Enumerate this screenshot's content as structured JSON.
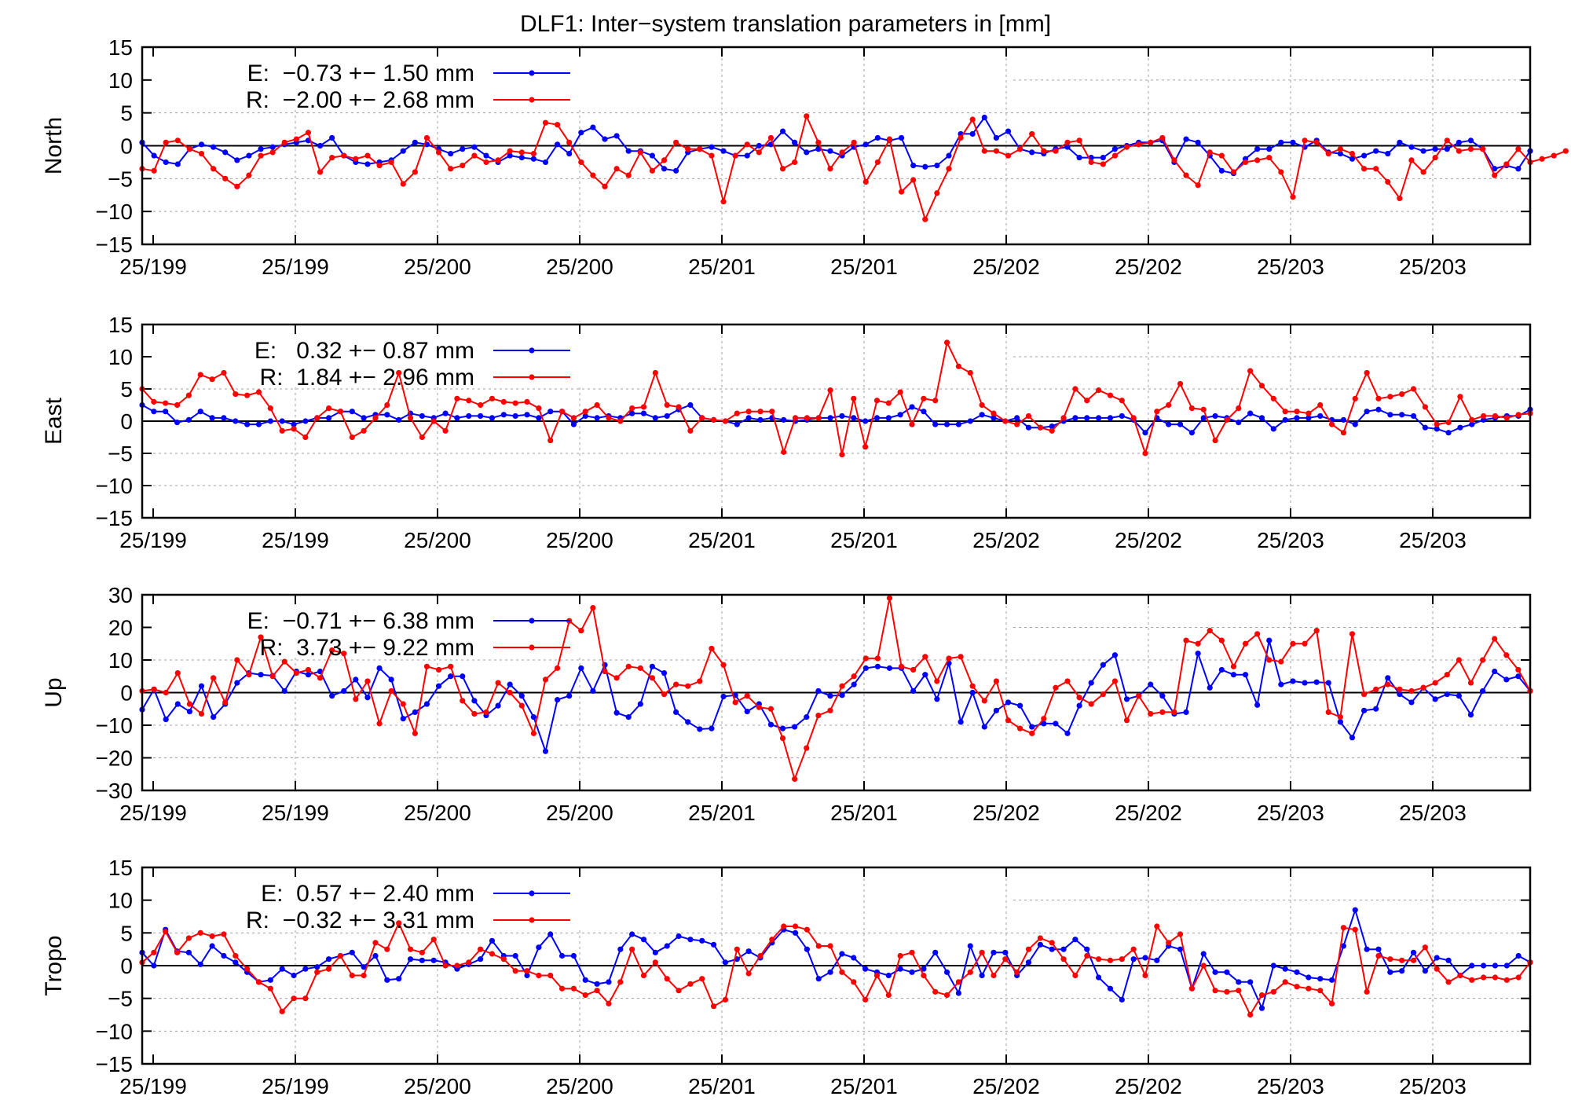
{
  "title": "DLF1: Inter−system translation parameters in [mm]",
  "colors": {
    "E": "#0000ff",
    "R": "#ff0000",
    "axis": "#000000",
    "grid": "#a0a0a0"
  },
  "chart_data": [
    {
      "type": "line",
      "ylabel": "North",
      "ylim": [
        -15,
        15
      ],
      "yticks": [
        15,
        10,
        5,
        0,
        -5,
        -10,
        -15
      ],
      "yticklabels": [
        "15",
        "10",
        "5",
        "0",
        "−5",
        "−10",
        "−15"
      ],
      "xticklabels": [
        "25/199",
        "25/199",
        "25/200",
        "25/200",
        "25/201",
        "25/201",
        "25/202",
        "25/202",
        "25/203",
        "25/203"
      ],
      "legend": "top-left",
      "series": [
        {
          "name": "E:  −0.73 +− 1.50 mm",
          "color": "#0000ff",
          "values": [
            0.5,
            -1.5,
            -2.5,
            -2.8,
            -0.5,
            0.2,
            -0.2,
            -1,
            -2.2,
            -1.5,
            -0.5,
            -0.2,
            0.2,
            0.5,
            0.8,
            0,
            1.2,
            -1.5,
            -2.5,
            -2.8,
            -2.5,
            -2.2,
            -0.8,
            0.5,
            0.2,
            -0.5,
            -1.2,
            -0.5,
            -0.2,
            -1.5,
            -2.5,
            -1.5,
            -1.8,
            -2,
            -2.5,
            0.2,
            -1.2,
            2,
            2.8,
            1,
            1.5,
            -0.8,
            -0.8,
            -1.5,
            -3.5,
            -3.8,
            -1,
            -0.5,
            -0.2,
            -0.8,
            -1.5,
            -1.5,
            0,
            0.2,
            2.2,
            0.5,
            -1,
            -0.5,
            -0.8,
            -1.5,
            -0.2,
            0.2,
            1.2,
            0.8,
            1.2,
            -3,
            -3.2,
            -3,
            -1.5,
            1.8,
            1.8,
            4.3,
            1.2,
            2.2,
            -0.5,
            -1,
            -1.2,
            -0.5,
            -0.2,
            -1.8,
            -1.8,
            -1.8,
            -0.5,
            0,
            0.5,
            0.5,
            0.8,
            -2.5,
            1,
            0.5,
            -1.5,
            -3.8,
            -4.2,
            -2,
            -0.5,
            -0.5,
            0.5,
            0.5,
            -0.2,
            0.8,
            -1,
            -1.2,
            -2,
            -1.5,
            -0.8,
            -1.2,
            0.5,
            -0.2,
            -0.8,
            -0.5,
            -0.5,
            0.5,
            0.8,
            -0.5,
            -3.5,
            -3,
            -3.5,
            -0.8
          ]
        },
        {
          "name": "R:  −2.00 +− 2.68 mm",
          "color": "#ff0000",
          "values": [
            -3.5,
            -3.8,
            0.5,
            0.8,
            -0.5,
            -1.2,
            -3.5,
            -5,
            -6.2,
            -4.5,
            -1.5,
            -1,
            0.5,
            1,
            2,
            -4,
            -1.8,
            -1.5,
            -2,
            -1.5,
            -3,
            -2.5,
            -5.8,
            -4,
            1.2,
            -1,
            -3.5,
            -3,
            -1.5,
            -2.5,
            -2.2,
            -0.8,
            -1,
            -1.2,
            3.5,
            3.2,
            0.5,
            -2.5,
            -4.5,
            -6.2,
            -3.5,
            -4.5,
            -1,
            -3.8,
            -2.2,
            0.5,
            -0.5,
            -0.5,
            -1.5,
            -8.5,
            -1.5,
            0.2,
            -1,
            1.2,
            -3.5,
            -2.5,
            4.5,
            0.5,
            -3.5,
            -1,
            0.5,
            -5.5,
            -2.5,
            1,
            -7,
            -5.2,
            -11.2,
            -7.2,
            -3.5,
            1.2,
            4,
            -0.8,
            -0.8,
            -1.5,
            -0.5,
            1.8,
            -0.8,
            -0.8,
            0.5,
            0.8,
            -2.5,
            -2.8,
            -1.5,
            -0.2,
            0.2,
            0.5,
            1.2,
            -2.2,
            -4.5,
            -6,
            -1,
            -1.5,
            -4,
            -2.5,
            -2.2,
            -1.8,
            -4,
            -7.8,
            0.8,
            0.5,
            -1.2,
            -0.5,
            -1.2,
            -3.5,
            -3.5,
            -5.5,
            -8,
            -2.2,
            -4,
            -1.8,
            0.8,
            -0.8,
            -0.5,
            -0.5,
            -4.5,
            -2.8,
            -0.5,
            -2.5,
            -2,
            -1.5,
            -0.8
          ]
        }
      ]
    },
    {
      "type": "line",
      "ylabel": "East",
      "ylim": [
        -15,
        15
      ],
      "yticks": [
        15,
        10,
        5,
        0,
        -5,
        -10,
        -15
      ],
      "yticklabels": [
        "15",
        "10",
        "5",
        "0",
        "−5",
        "−10",
        "−15"
      ],
      "xticklabels": [
        "25/199",
        "25/199",
        "25/200",
        "25/200",
        "25/201",
        "25/201",
        "25/202",
        "25/202",
        "25/203",
        "25/203"
      ],
      "legend": "top-left",
      "series": [
        {
          "name": "E:   0.32 +− 0.87 mm",
          "color": "#0000ff",
          "values": [
            2.5,
            1.5,
            1.5,
            -0.2,
            0.2,
            1.5,
            0.5,
            0.5,
            0,
            -0.5,
            -0.5,
            0,
            0,
            -0.5,
            0,
            0.5,
            0.5,
            1.5,
            1.5,
            0.5,
            1,
            1,
            0.2,
            1.2,
            0.8,
            0.5,
            1.2,
            0.5,
            0.8,
            0.8,
            0.5,
            1,
            0.8,
            1,
            0.5,
            1.5,
            1.5,
            -0.5,
            0.8,
            0.5,
            0.8,
            0.5,
            1.2,
            1.2,
            0.5,
            0.8,
            1.8,
            2.5,
            0.5,
            0.2,
            0,
            -0.5,
            0.5,
            0.2,
            0.5,
            0.2,
            0,
            0.2,
            0.5,
            0.5,
            0.8,
            0.5,
            0,
            0.5,
            0.5,
            1,
            2.2,
            1.5,
            -0.5,
            -0.5,
            -0.5,
            0,
            1,
            0.5,
            0,
            0.5,
            -1,
            -1,
            -0.8,
            0,
            0.5,
            0.5,
            0.5,
            0.5,
            0.8,
            0.2,
            -1.8,
            0.5,
            -0.5,
            -0.5,
            -1.8,
            0.5,
            0.8,
            0.5,
            -0.2,
            1.2,
            0.5,
            -1.2,
            0.2,
            0.5,
            0.5,
            0.8,
            0.2,
            0.2,
            -0.5,
            1.5,
            1.8,
            1,
            1,
            0.8,
            -1,
            -1.2,
            -1.8,
            -1,
            -0.5,
            0.2,
            0.5,
            0.8,
            0.8,
            1.8
          ]
        },
        {
          "name": "R:  1.84 +− 2.96 mm",
          "color": "#ff0000",
          "values": [
            5,
            3,
            2.8,
            2.5,
            4,
            7.2,
            6.5,
            7.5,
            4.2,
            4,
            4.5,
            2,
            -1.5,
            -1.2,
            -2.5,
            0.5,
            2,
            1.5,
            -2.5,
            -1.5,
            0.5,
            2.5,
            7.5,
            0.5,
            -2.5,
            0,
            -1.5,
            3.5,
            3.2,
            2.5,
            3.5,
            3,
            2.8,
            3,
            2,
            -3,
            1.5,
            0.5,
            1.5,
            2.5,
            0.5,
            0,
            2,
            2.2,
            7.5,
            2.5,
            2.2,
            -1.5,
            0.5,
            0.2,
            0,
            1.2,
            1.5,
            1.5,
            1.5,
            -4.8,
            0.5,
            0.5,
            0.5,
            4.8,
            -5.2,
            3.5,
            -4,
            3.2,
            2.8,
            4.5,
            -0.5,
            3.5,
            3.2,
            12.2,
            8.5,
            7.5,
            2.5,
            1.2,
            0,
            -0.5,
            0.8,
            -1,
            -1.5,
            0.5,
            5,
            3.2,
            4.8,
            4,
            3.2,
            0.5,
            -5,
            1.5,
            2.5,
            5.8,
            2,
            1.8,
            -3,
            0.2,
            2,
            7.8,
            5.5,
            3.5,
            1.5,
            1.5,
            1.2,
            2.5,
            -0.5,
            -1.8,
            3.5,
            7.5,
            3.5,
            3.8,
            4.2,
            5,
            2.2,
            -0.5,
            -0.2,
            3.8,
            0.2,
            0.8,
            0.8,
            0.5,
            1,
            1.2
          ]
        }
      ]
    },
    {
      "type": "line",
      "ylabel": "Up",
      "ylim": [
        -30,
        30
      ],
      "yticks": [
        30,
        20,
        10,
        0,
        -10,
        -20,
        -30
      ],
      "yticklabels": [
        "30",
        "20",
        "10",
        "0",
        "−10",
        "−20",
        "−30"
      ],
      "xticklabels": [
        "25/199",
        "25/199",
        "25/200",
        "25/200",
        "25/201",
        "25/201",
        "25/202",
        "25/202",
        "25/203",
        "25/203"
      ],
      "legend": "top-left",
      "series": [
        {
          "name": "E:  −0.71 +− 6.38 mm",
          "color": "#0000ff",
          "values": [
            -5.2,
            1,
            -8.2,
            -3.5,
            -5.8,
            2,
            -7.5,
            -3.5,
            3,
            6,
            5.5,
            5.2,
            0.5,
            6.5,
            5.5,
            6.5,
            -1,
            0.5,
            4,
            -1.5,
            7.5,
            4,
            -8,
            -6,
            -3.5,
            2,
            5,
            5,
            -2.5,
            -7,
            -4,
            2.5,
            -1,
            -7.5,
            -18,
            -2.2,
            -1,
            7.5,
            0.5,
            8.5,
            -6.2,
            -7.5,
            -3.5,
            8,
            6,
            -6,
            -9,
            -11.2,
            -11,
            -1.2,
            -0.8,
            -5.8,
            -3.5,
            -9.8,
            -11,
            -10.5,
            -7.5,
            0.5,
            -1,
            -0.8,
            2.5,
            7.5,
            8,
            7.5,
            7.5,
            0.5,
            5.5,
            -2,
            9,
            -9,
            0,
            -10.5,
            -5.5,
            -3,
            -4,
            -10.5,
            -9.5,
            -9.5,
            -12.5,
            -4,
            3,
            8.5,
            11.5,
            -2,
            -1,
            2.5,
            -1,
            -6.5,
            -6,
            12,
            1.5,
            7,
            5.5,
            5.5,
            -3.8,
            16,
            2.5,
            3.5,
            3,
            3.2,
            3,
            -9,
            -13.8,
            -5.5,
            -5,
            4.5,
            -0.5,
            -3,
            1.5,
            -2,
            -0.5,
            -1,
            -6.8,
            0.5,
            6.5,
            4,
            5,
            0.5
          ]
        },
        {
          "name": "R:  3.73 +− 9.22 mm",
          "color": "#ff0000",
          "values": [
            0.5,
            1,
            0,
            6,
            -3.5,
            -6.5,
            4.5,
            -3,
            10,
            5.5,
            17,
            5,
            9.5,
            6,
            7,
            4.5,
            13,
            12,
            -2,
            3.5,
            -9.5,
            0.5,
            -3.5,
            -12.5,
            8,
            7,
            8,
            -2.5,
            -6.5,
            -6,
            3,
            0,
            -4,
            -12.5,
            4,
            7.5,
            22,
            19,
            26,
            6.5,
            4.5,
            8,
            7.5,
            4.5,
            -0.5,
            2.5,
            2,
            3.5,
            13.5,
            8.5,
            -3,
            -1,
            -4.5,
            -5,
            -14,
            -26.5,
            -17,
            -7,
            -5.5,
            2,
            5,
            10.5,
            10.5,
            29,
            8,
            7,
            11,
            3.5,
            10.5,
            11,
            2,
            -2.5,
            3.5,
            -8.5,
            -11,
            -12.5,
            -8,
            1.5,
            3.5,
            -1.5,
            -3.5,
            -0.5,
            3.5,
            -8.5,
            -1,
            -6.5,
            -6,
            -6,
            16,
            15,
            19,
            16,
            8,
            15,
            18,
            10,
            9.5,
            15,
            15,
            19,
            -6,
            -7.5,
            18,
            -0.5,
            1,
            2.5,
            1,
            0.5,
            1.5,
            3,
            5.5,
            10,
            3,
            10,
            16.5,
            11.5,
            7,
            0.5
          ]
        }
      ]
    },
    {
      "type": "line",
      "ylabel": "Tropo",
      "ylim": [
        -15,
        15
      ],
      "yticks": [
        15,
        10,
        5,
        0,
        -5,
        -10,
        -15
      ],
      "yticklabels": [
        "15",
        "10",
        "5",
        "0",
        "−5",
        "−10",
        "−15"
      ],
      "xticklabels": [
        "25/199",
        "25/199",
        "25/200",
        "25/200",
        "25/201",
        "25/201",
        "25/202",
        "25/202",
        "25/203",
        "25/203"
      ],
      "legend": "top-left",
      "series": [
        {
          "name": "E:  0.57 +− 2.40 mm",
          "color": "#0000ff",
          "values": [
            2,
            0,
            5.5,
            2.2,
            2,
            0.2,
            3,
            1.5,
            0.5,
            -1,
            -2.5,
            -2.2,
            -0.5,
            -1.5,
            -0.5,
            -0.2,
            1,
            1.5,
            2,
            -0.2,
            1.5,
            -2.2,
            -2,
            1,
            0.8,
            0.8,
            0.5,
            -0.5,
            0.2,
            1,
            3.8,
            1.5,
            1.5,
            -1.5,
            2.8,
            4.8,
            1.5,
            1.5,
            -2.2,
            -2.8,
            -2.5,
            2.5,
            4.8,
            4,
            2,
            3,
            4.5,
            4,
            3.8,
            3.2,
            0.5,
            1,
            2.2,
            1.2,
            3.5,
            5.5,
            5,
            2.5,
            -2,
            -1,
            1.8,
            1.2,
            -0.5,
            -1,
            -1.5,
            -0.5,
            -1,
            -0.5,
            2,
            -1,
            -4.2,
            3,
            -1.5,
            2,
            2,
            -1.5,
            0.5,
            3.2,
            2.5,
            2.5,
            4,
            2.5,
            -1.8,
            -3.5,
            -5.2,
            1,
            1.2,
            0.8,
            3,
            2.5,
            -3.5,
            1.8,
            -1,
            -1,
            -2.5,
            -2.5,
            -6.5,
            0,
            -0.5,
            -1,
            -1.8,
            -2,
            -2.2,
            3,
            8.5,
            2.5,
            2.5,
            -1,
            -0.8,
            2,
            -0.8,
            1.2,
            0.8,
            -1.5,
            0,
            0,
            0,
            0,
            1.5,
            0.5
          ]
        },
        {
          "name": "R:  −0.32 +− 3.31 mm",
          "color": "#ff0000",
          "values": [
            0.5,
            2,
            5.2,
            2,
            4.2,
            5,
            4.5,
            4.8,
            1.5,
            -0.5,
            -2.5,
            -3.5,
            -7,
            -5,
            -5,
            -1,
            -0.5,
            1.5,
            -1.5,
            -1.5,
            3.5,
            2.5,
            6.5,
            2.5,
            2,
            4,
            0,
            0,
            0.5,
            2.5,
            1.8,
            1,
            -0.8,
            -0.8,
            -1.5,
            -1.5,
            -3.5,
            -3.5,
            -4.5,
            -3.8,
            -5.8,
            -2.5,
            2.5,
            -1.5,
            0.5,
            -2,
            -3.8,
            -2.8,
            -2,
            -6.2,
            -5.2,
            2.5,
            -1.2,
            1.5,
            4,
            6,
            6,
            5.5,
            3,
            3,
            -1,
            -2.5,
            -5.2,
            -1.5,
            -4.5,
            1.5,
            2,
            -1.5,
            -4,
            -4.5,
            -2.5,
            -1,
            2,
            -1.5,
            1,
            -1,
            2.5,
            4.2,
            3.5,
            1,
            -1.5,
            1.5,
            1,
            0.8,
            1,
            2.5,
            -1.5,
            6,
            3.5,
            4.8,
            -3.5,
            0,
            -3.8,
            -4,
            -3.8,
            -7.5,
            -4.5,
            -4,
            -2.5,
            -3.2,
            -3.5,
            -3.8,
            -5.8,
            5.8,
            5.5,
            -4,
            1.5,
            1,
            0.8,
            0.8,
            2.8,
            -0.5,
            -2.5,
            -1.5,
            -2.2,
            -1.8,
            -1.8,
            -2.2,
            -1.8,
            0.5
          ]
        }
      ]
    }
  ]
}
